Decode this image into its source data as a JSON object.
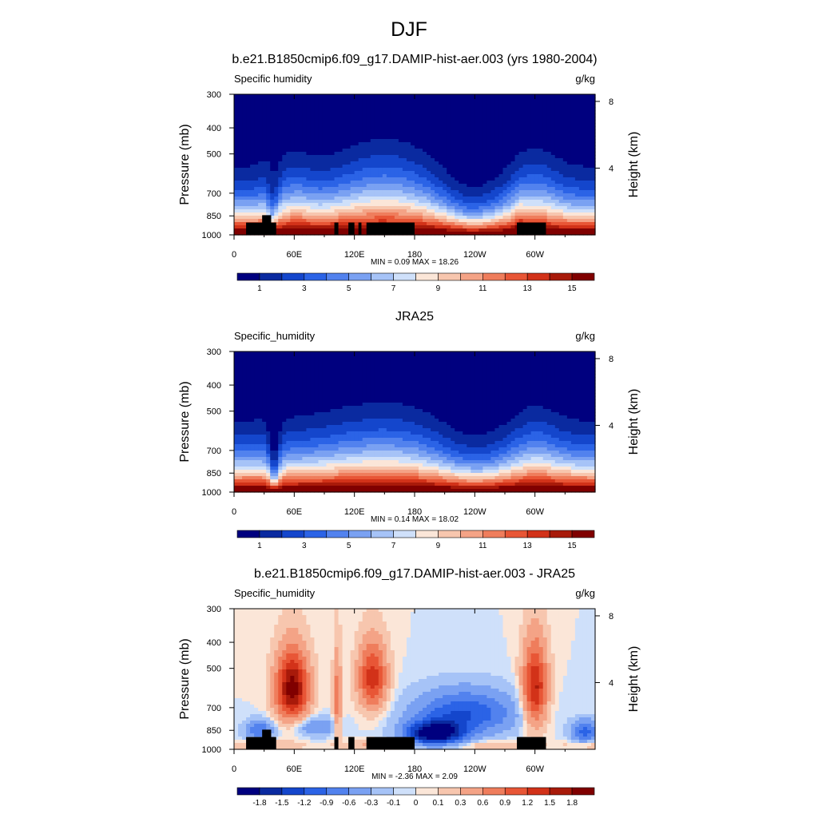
{
  "figure": {
    "main_title": "DJF"
  },
  "chart_data": [
    {
      "type": "heatmap",
      "title": "b.e21.B1850cmip6.f09_g17.DAMIP-hist-aer.003 (yrs 1980-2004)",
      "left_label": "Specific humidity",
      "right_label": "g/kg",
      "ylabel": "Pressure (mb)",
      "y2label": "Height (km)",
      "x_ticks": [
        "0",
        "60E",
        "120E",
        "180",
        "120W",
        "60W"
      ],
      "x_tick_lon": [
        0,
        60,
        120,
        180,
        240,
        300
      ],
      "xlim": [
        0,
        360
      ],
      "y_ticks": [
        "300",
        "400",
        "500",
        "700",
        "850",
        "1000"
      ],
      "y_tick_p": [
        300,
        400,
        500,
        700,
        850,
        1000
      ],
      "ylim": [
        300,
        1000
      ],
      "y2_ticks": [
        "8",
        "4"
      ],
      "y2_tick_km": [
        8,
        4
      ],
      "stats": "MIN =   0.09  MAX =  18.26",
      "min": 0.09,
      "max": 18.26,
      "colorbar_labels": [
        "1",
        "3",
        "5",
        "7",
        "9",
        "11",
        "13",
        "15"
      ],
      "colorbar_label_slots": [
        1,
        3,
        5,
        7,
        9,
        11,
        13,
        15
      ],
      "colorbar_colors": [
        "#00007f",
        "#0a2aa0",
        "#1446cc",
        "#2b63e6",
        "#5282ee",
        "#7aa1f2",
        "#a6c3f7",
        "#cfe0fa",
        "#fbe6d8",
        "#f7c6ae",
        "#f4a386",
        "#ef7d5c",
        "#e85636",
        "#d23219",
        "#a81a0a",
        "#800000"
      ],
      "mask_boxes": [
        {
          "lon0": 12,
          "lon1": 42,
          "p_top": 900
        },
        {
          "lon0": 28,
          "lon1": 37,
          "p_top": 845
        },
        {
          "lon0": 100,
          "lon1": 104,
          "p_top": 900
        },
        {
          "lon0": 114,
          "lon1": 120,
          "p_top": 900
        },
        {
          "lon0": 124,
          "lon1": 127,
          "p_top": 900
        },
        {
          "lon0": 132,
          "lon1": 180,
          "p_top": 900
        },
        {
          "lon0": 282,
          "lon1": 311,
          "p_top": 900
        }
      ]
    },
    {
      "type": "heatmap",
      "title": "JRA25",
      "left_label": "Specific_humidity",
      "right_label": "g/kg",
      "ylabel": "Pressure (mb)",
      "y2label": "Height (km)",
      "x_ticks": [
        "0",
        "60E",
        "120E",
        "180",
        "120W",
        "60W"
      ],
      "x_tick_lon": [
        0,
        60,
        120,
        180,
        240,
        300
      ],
      "xlim": [
        0,
        360
      ],
      "y_ticks": [
        "300",
        "400",
        "500",
        "700",
        "850",
        "1000"
      ],
      "y_tick_p": [
        300,
        400,
        500,
        700,
        850,
        1000
      ],
      "ylim": [
        300,
        1000
      ],
      "y2_ticks": [
        "8",
        "4"
      ],
      "y2_tick_km": [
        8,
        4
      ],
      "stats": "MIN =   0.14  MAX =  18.02",
      "min": 0.14,
      "max": 18.02,
      "colorbar_labels": [
        "1",
        "3",
        "5",
        "7",
        "9",
        "11",
        "13",
        "15"
      ],
      "colorbar_label_slots": [
        1,
        3,
        5,
        7,
        9,
        11,
        13,
        15
      ],
      "colorbar_colors": [
        "#00007f",
        "#0a2aa0",
        "#1446cc",
        "#2b63e6",
        "#5282ee",
        "#7aa1f2",
        "#a6c3f7",
        "#cfe0fa",
        "#fbe6d8",
        "#f7c6ae",
        "#f4a386",
        "#ef7d5c",
        "#e85636",
        "#d23219",
        "#a81a0a",
        "#800000"
      ],
      "mask_boxes": []
    },
    {
      "type": "heatmap",
      "title": "b.e21.B1850cmip6.f09_g17.DAMIP-hist-aer.003 - JRA25",
      "left_label": "Specific_humidity",
      "right_label": "g/kg",
      "ylabel": "Pressure (mb)",
      "y2label": "Height (km)",
      "x_ticks": [
        "0",
        "60E",
        "120E",
        "180",
        "120W",
        "60W"
      ],
      "x_tick_lon": [
        0,
        60,
        120,
        180,
        240,
        300
      ],
      "xlim": [
        0,
        360
      ],
      "y_ticks": [
        "300",
        "400",
        "500",
        "700",
        "850",
        "1000"
      ],
      "y_tick_p": [
        300,
        400,
        500,
        700,
        850,
        1000
      ],
      "ylim": [
        300,
        1000
      ],
      "y2_ticks": [
        "8",
        "4"
      ],
      "y2_tick_km": [
        8,
        4
      ],
      "stats": "MIN =  -2.36  MAX =   2.09",
      "min": -2.36,
      "max": 2.09,
      "colorbar_labels": [
        "-1.8",
        "-1.5",
        "-1.2",
        "-0.9",
        "-0.6",
        "-0.3",
        "-0.1",
        "0",
        "0.1",
        "0.3",
        "0.6",
        "0.9",
        "1.2",
        "1.5",
        "1.8"
      ],
      "colorbar_label_slots": [
        1,
        2,
        3,
        4,
        5,
        6,
        7,
        8,
        9,
        10,
        11,
        12,
        13,
        14,
        15
      ],
      "colorbar_colors": [
        "#00007f",
        "#0a2aa0",
        "#1446cc",
        "#2b63e6",
        "#5282ee",
        "#7aa1f2",
        "#a6c3f7",
        "#cfe0fa",
        "#fbe6d8",
        "#f7c6ae",
        "#f4a386",
        "#ef7d5c",
        "#e85636",
        "#d23219",
        "#a81a0a",
        "#800000"
      ],
      "mask_boxes": [
        {
          "lon0": 12,
          "lon1": 42,
          "p_top": 900
        },
        {
          "lon0": 28,
          "lon1": 37,
          "p_top": 845
        },
        {
          "lon0": 100,
          "lon1": 104,
          "p_top": 900
        },
        {
          "lon0": 114,
          "lon1": 120,
          "p_top": 900
        },
        {
          "lon0": 132,
          "lon1": 180,
          "p_top": 900
        },
        {
          "lon0": 282,
          "lon1": 311,
          "p_top": 900
        }
      ]
    }
  ]
}
